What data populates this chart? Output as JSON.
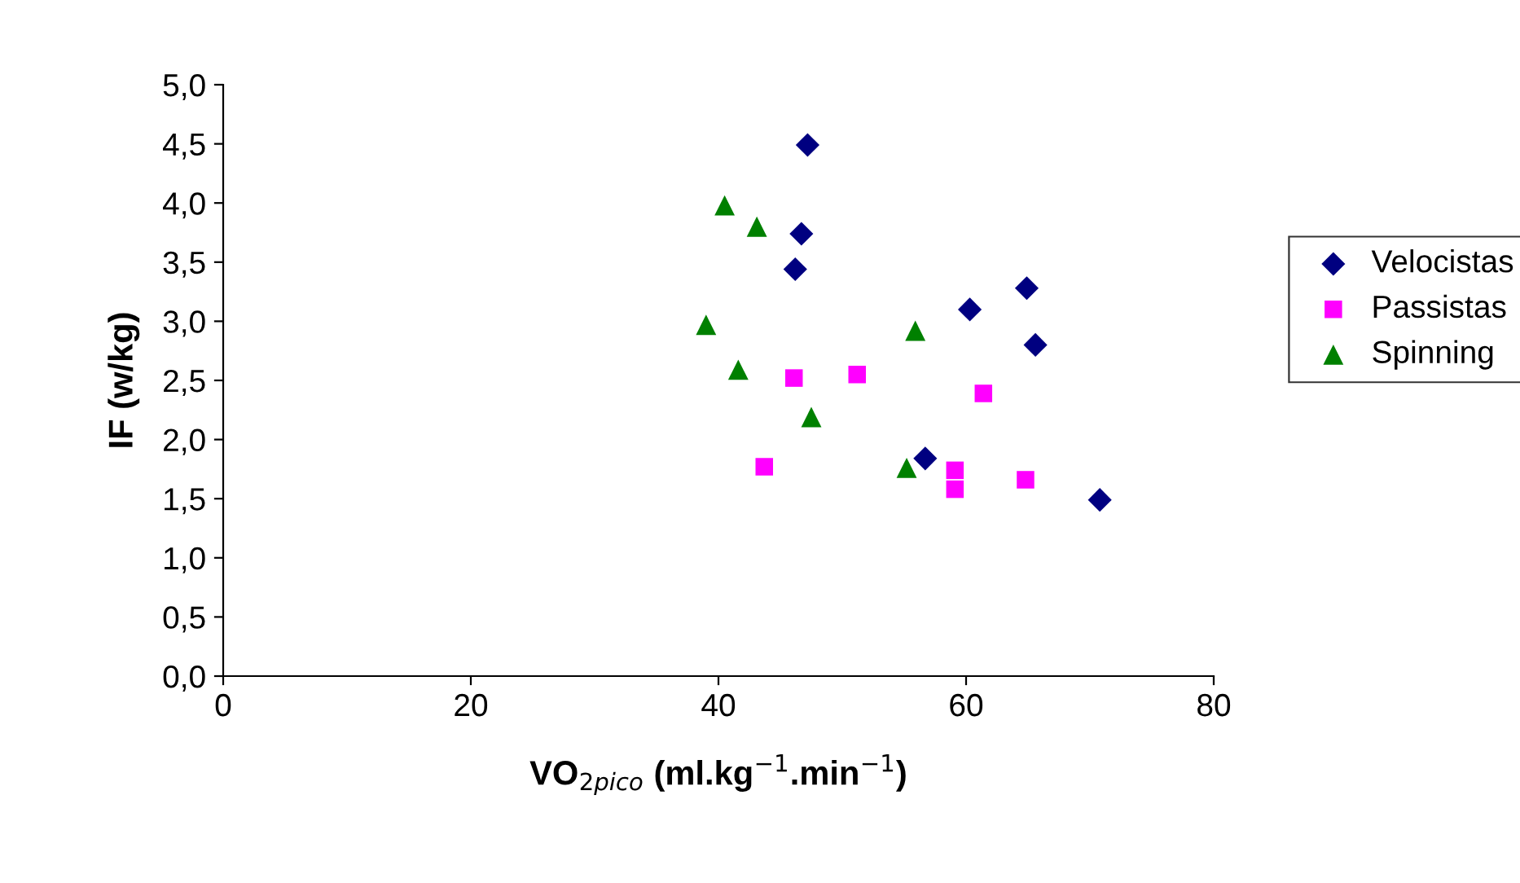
{
  "chart_data": {
    "type": "scatter",
    "xlabel": "VO$_{2pico}$ (ml.kg$^{−1}$.min$^{−1}$)",
    "ylabel": "IF (w/kg)",
    "xlim": [
      0,
      80
    ],
    "xticks": [
      0,
      20,
      40,
      60,
      80
    ],
    "ylim": [
      0,
      5
    ],
    "yticks": [
      {
        "value": 0,
        "label": "0,0"
      },
      {
        "value": 0.5,
        "label": "0,5"
      },
      {
        "value": 1,
        "label": "1,0"
      },
      {
        "value": 1.5,
        "label": "1,5"
      },
      {
        "value": 2,
        "label": "2,0"
      },
      {
        "value": 2.5,
        "label": "2,5"
      },
      {
        "value": 3,
        "label": "3,0"
      },
      {
        "value": 3.5,
        "label": "3,5"
      },
      {
        "value": 4,
        "label": "4,0"
      },
      {
        "value": 4.5,
        "label": "4,5"
      },
      {
        "value": 5,
        "label": "5,0"
      }
    ],
    "legend": "right",
    "grid": false,
    "series": [
      {
        "name": "Velocistas",
        "color": "#000080",
        "marker": "diamond",
        "x": [
          47.2,
          46.7,
          46.2,
          60.3,
          64.9,
          65.6,
          56.7,
          70.8
        ],
        "values": [
          4.49,
          3.74,
          3.44,
          3.1,
          3.28,
          2.8,
          1.84,
          1.49
        ]
      },
      {
        "name": "Passistas",
        "color": "#ff00ff",
        "marker": "square",
        "x": [
          46.1,
          51.2,
          61.4,
          43.7,
          59.1,
          59.1,
          64.8
        ],
        "values": [
          2.52,
          2.55,
          2.39,
          1.77,
          1.74,
          1.58,
          1.66
        ]
      },
      {
        "name": "Spinning",
        "color": "#008000",
        "marker": "triangle",
        "x": [
          40.5,
          43.1,
          39.0,
          41.6,
          47.5,
          55.9,
          55.2
        ],
        "values": [
          3.98,
          3.8,
          2.97,
          2.59,
          2.19,
          2.92,
          1.76
        ]
      }
    ]
  }
}
